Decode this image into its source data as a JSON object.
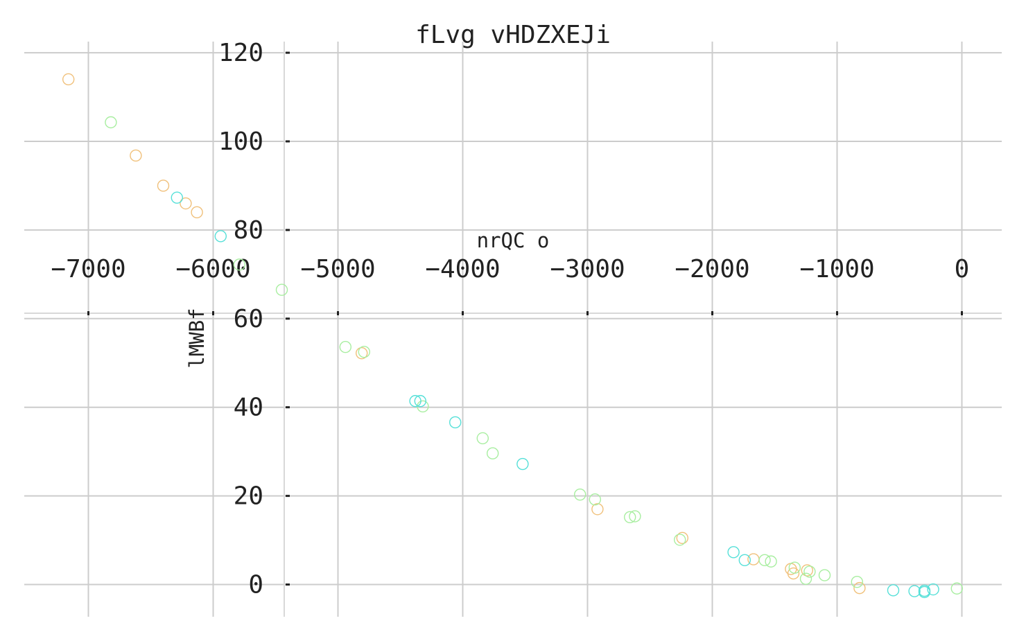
{
  "chart_data": {
    "type": "scatter",
    "title": "fLvg vHDZXEJi",
    "xlabel": "nrQC o",
    "ylabel": "lMWBf",
    "xlim": [
      -7500,
      300
    ],
    "ylim": [
      -7,
      120
    ],
    "xticks": [
      -7000,
      -6000,
      -5000,
      -4000,
      -3000,
      -2000,
      -1000,
      0
    ],
    "yticks": [
      0,
      20,
      40,
      60,
      80,
      100,
      120
    ],
    "xtick_labels": [
      "−7000",
      "−6000",
      "−5000",
      "−4000",
      "−3000",
      "−2000",
      "−1000",
      "0"
    ],
    "ytick_labels": [
      "0",
      "20",
      "40",
      "60",
      "80",
      "100",
      "120"
    ],
    "grid": true,
    "marker": "hollow-circle",
    "series": [
      {
        "color": "#f0c07a",
        "points": [
          [
            -7160,
            114
          ],
          [
            -6620,
            96.8
          ],
          [
            -6400,
            90
          ],
          [
            -6220,
            86
          ],
          [
            -6130,
            84
          ],
          [
            -4810,
            52.2
          ],
          [
            -2920,
            17
          ],
          [
            -2240,
            10.5
          ],
          [
            -1670,
            5.7
          ],
          [
            -1370,
            3.5
          ],
          [
            -1350,
            2.5
          ],
          [
            -1240,
            3.2
          ],
          [
            -820,
            -0.8
          ]
        ]
      },
      {
        "color": "#a8eea0",
        "points": [
          [
            -6820,
            104.3
          ],
          [
            -5790,
            72.2
          ],
          [
            -5450,
            66.5
          ],
          [
            -4940,
            53.6
          ],
          [
            -4790,
            52.5
          ],
          [
            -4320,
            40.2
          ],
          [
            -3840,
            33
          ],
          [
            -3760,
            29.6
          ],
          [
            -3060,
            20.3
          ],
          [
            -2940,
            19.2
          ],
          [
            -2660,
            15.2
          ],
          [
            -2620,
            15.4
          ],
          [
            -2260,
            10.1
          ],
          [
            -1580,
            5.5
          ],
          [
            -1530,
            5.2
          ],
          [
            -1340,
            3.8
          ],
          [
            -1250,
            1.3
          ],
          [
            -1220,
            2.9
          ],
          [
            -1100,
            2.1
          ],
          [
            -840,
            0.6
          ],
          [
            -40,
            -0.9
          ]
        ]
      },
      {
        "color": "#55e0d8",
        "points": [
          [
            -6290,
            87.3
          ],
          [
            -5940,
            78.6
          ],
          [
            -4380,
            41.4
          ],
          [
            -4340,
            41.4
          ],
          [
            -4060,
            36.6
          ],
          [
            -3520,
            27.2
          ],
          [
            -1830,
            7.3
          ],
          [
            -1740,
            5.5
          ],
          [
            -550,
            -1.3
          ],
          [
            -380,
            -1.5
          ],
          [
            -300,
            -1.4
          ],
          [
            -230,
            -1.1
          ],
          [
            -300,
            -1.7
          ]
        ]
      }
    ]
  }
}
